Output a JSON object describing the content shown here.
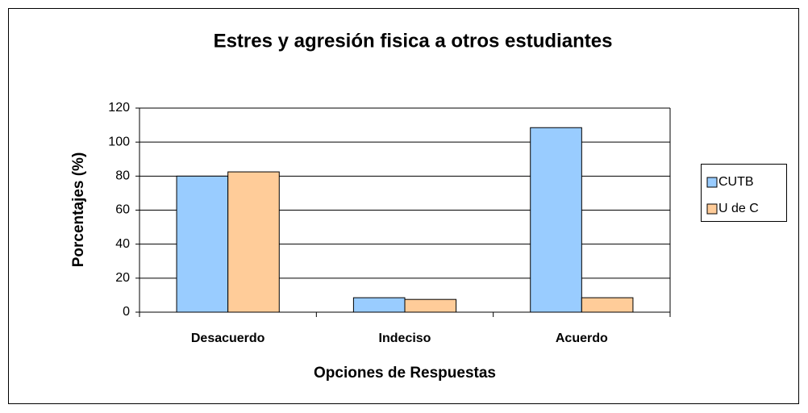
{
  "chart_data": {
    "type": "bar",
    "title": "Estres y agresión fisica a otros estudiantes",
    "x_label": "Opciones de Respuestas",
    "y_label": "Porcentajes (%)",
    "categories": [
      "Desacuerdo",
      "Indeciso",
      "Acuerdo"
    ],
    "series": [
      {
        "name": "CUTB",
        "color": "#99ccff",
        "values": [
          80,
          8.5,
          108.5
        ]
      },
      {
        "name": "U de C",
        "color": "#ffcc99",
        "values": [
          82.5,
          7.5,
          8.5
        ]
      }
    ],
    "ylim": [
      0,
      120
    ],
    "yticks": [
      0,
      20,
      40,
      60,
      80,
      100,
      120
    ],
    "grid": true,
    "legend": "right"
  }
}
